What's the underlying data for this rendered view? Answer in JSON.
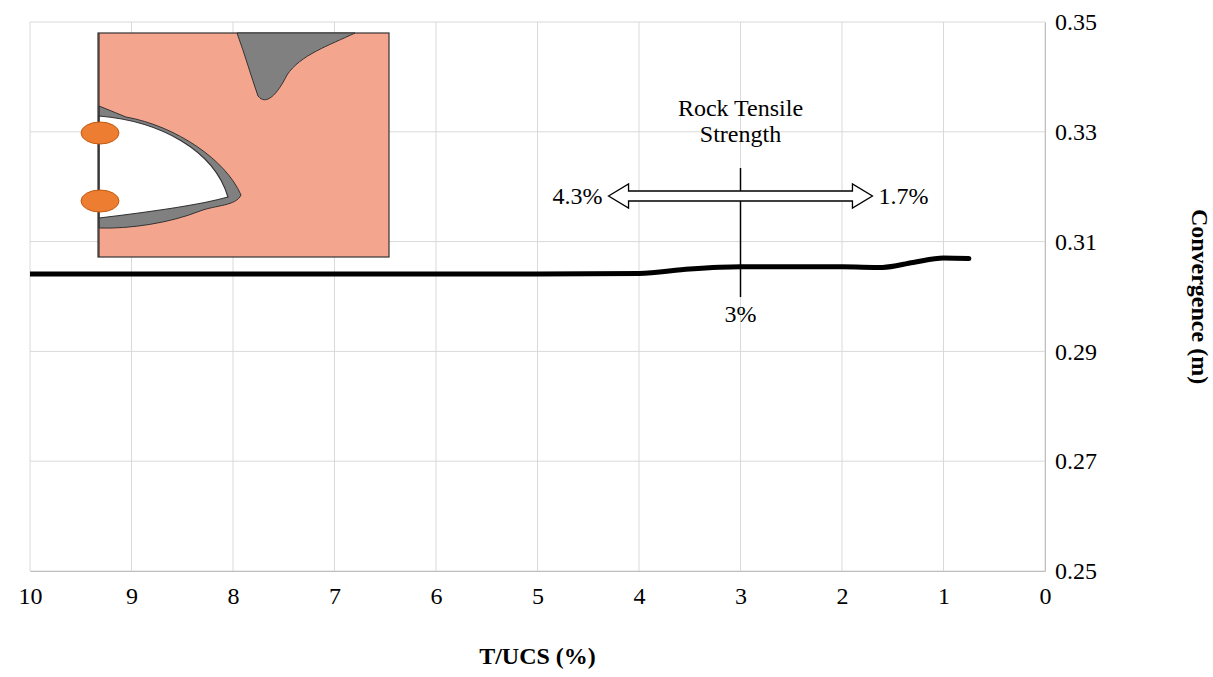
{
  "chart_data": {
    "type": "line",
    "x_label": "T/UCS (%)",
    "y_label": "Convergence (m)",
    "x": [
      10,
      9,
      8,
      7,
      6,
      5,
      4,
      3.5,
      3,
      2.5,
      2,
      1.6,
      1.3,
      1,
      0.75
    ],
    "values": [
      0.3041,
      0.3041,
      0.3041,
      0.3041,
      0.3041,
      0.3041,
      0.3042,
      0.305,
      0.3054,
      0.3054,
      0.3054,
      0.3053,
      0.3062,
      0.307,
      0.3069
    ],
    "color": "#000000",
    "xlim": [
      10,
      0
    ],
    "ylim": [
      0.25,
      0.35
    ],
    "xticks": [
      10,
      9,
      8,
      7,
      6,
      5,
      4,
      3,
      2,
      1,
      0
    ],
    "yticks": [
      0.25,
      0.27,
      0.29,
      0.31,
      0.33,
      0.35
    ],
    "grid": true,
    "annotation": {
      "text": "Rock Tensile Strength",
      "from": {
        "value": 4.3,
        "label": "4.3%"
      },
      "to": {
        "value": 1.7,
        "label": "1.7%"
      },
      "at": {
        "value": 3,
        "label": "3%"
      }
    }
  }
}
